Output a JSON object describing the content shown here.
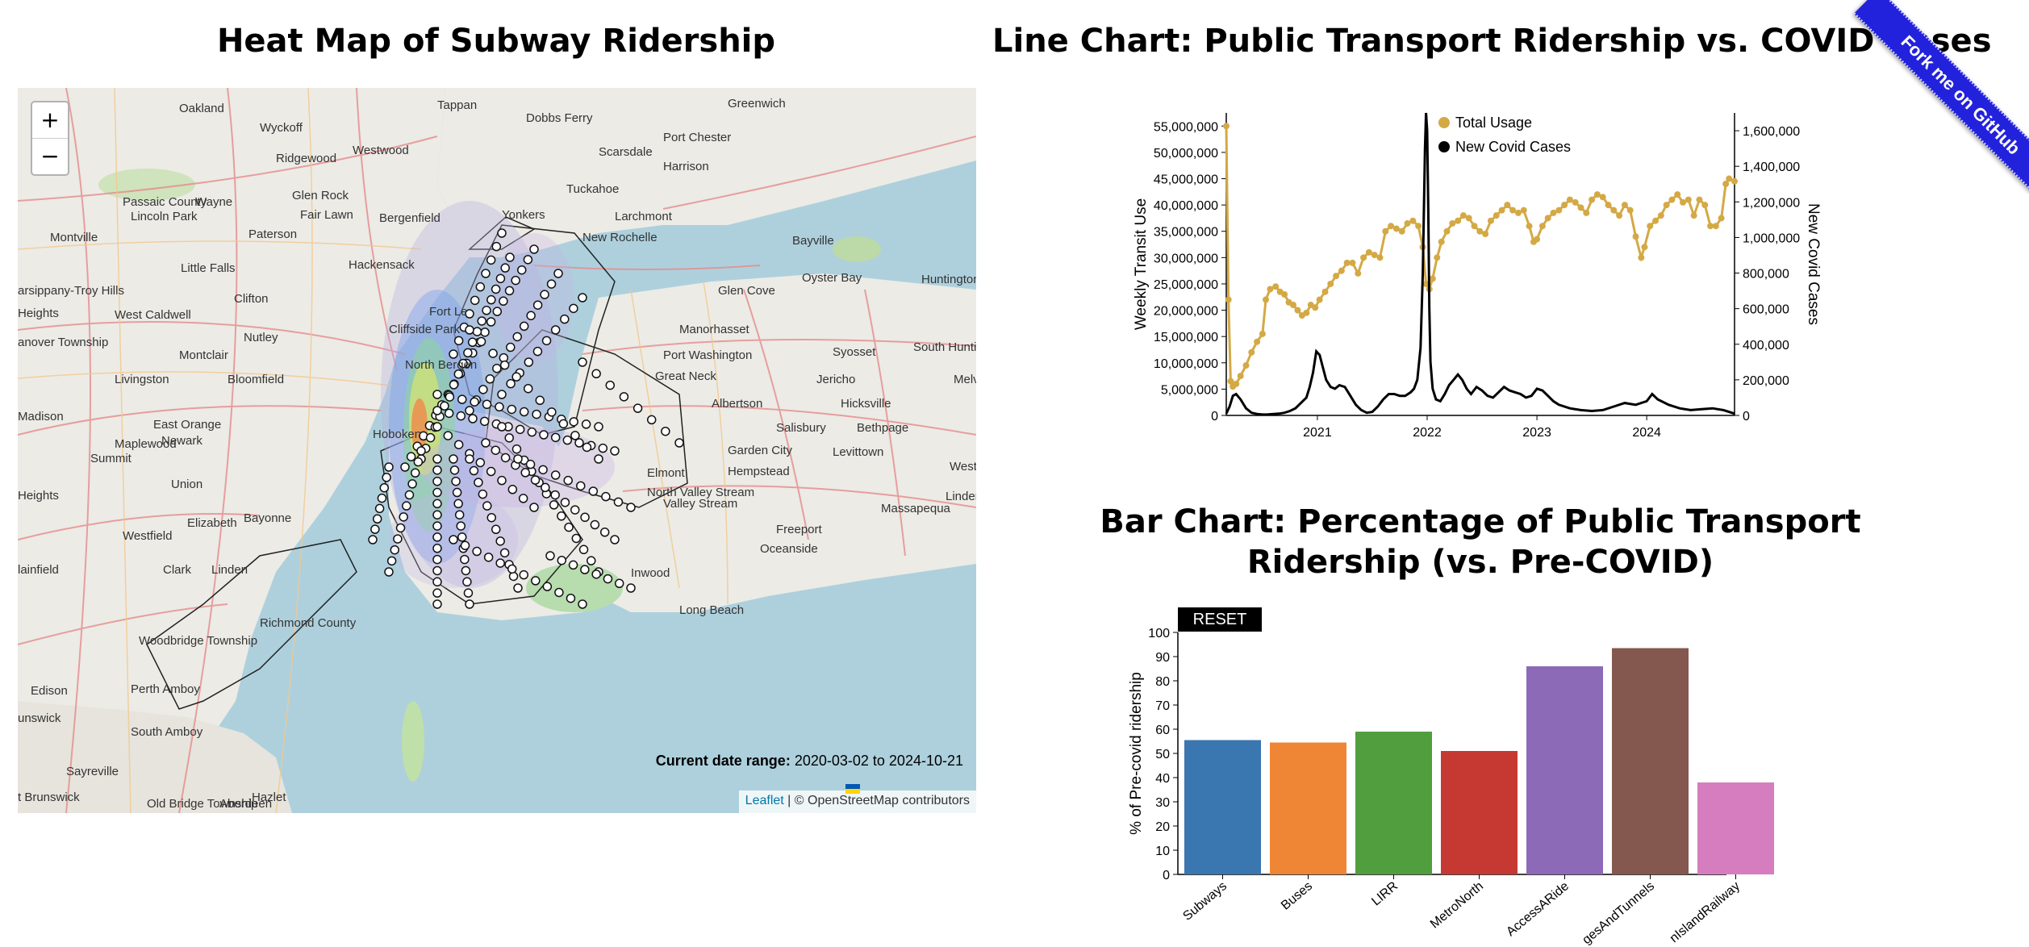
{
  "map_panel": {
    "title": "Heat Map of Subway Ridership",
    "zoom_in": "+",
    "zoom_out": "−",
    "date_range_label": "Current date range:",
    "date_range_value": "2020-03-02 to 2024-10-21",
    "attribution_link": "Leaflet",
    "attribution_text": " | © OpenStreetMap contributors",
    "place_labels": [
      "Tappan",
      "Dobbs Ferry",
      "Greenwich",
      "Oakland",
      "Wyckoff",
      "Ridgewood",
      "Westwood",
      "Scarsdale",
      "Port Chester",
      "Harrison",
      "Wayne",
      "Glen Rock",
      "Tuckahoe",
      "Larchmont",
      "Lincoln Park",
      "Fair Lawn",
      "Bergenfield",
      "Yonkers",
      "New Rochelle",
      "Montville",
      "Paterson",
      "Bayville",
      "Little Falls",
      "Hackensack",
      "Glen Cove",
      "Oyster Bay",
      "arsippany-Troy Hills",
      "West Caldwell",
      "Clifton",
      "Heights",
      "Cliffside Park",
      "Manorhasset",
      "Huntington Station",
      "Montclair",
      "Nutley",
      "Port Washington",
      "Syosset",
      "anover Township",
      "Livingston",
      "Bloomfield",
      "North Bergen",
      "Great Neck",
      "Jericho",
      "South Huntingt",
      "Melville",
      "Fort Le",
      "Albertson",
      "Hicksville",
      "Madison",
      "East Orange",
      "Newark",
      "Hoboken",
      "Salisbury",
      "Bethpage",
      "Maplewood",
      "Summit",
      "Garden City",
      "Levittown",
      "Hempstead",
      "Union",
      "Elmont",
      "West Ea",
      "Massapequa",
      "Heights",
      "North Valley Stream",
      "Bayonne",
      "Elizabeth",
      "Westfield",
      "Valley Stream",
      "Freeport",
      "Lindenh",
      "lainfield",
      "Clark",
      "Linden",
      "Inwood",
      "Oceanside",
      "Long Beach",
      "Richmond County",
      "Woodbridge Township",
      "Edison",
      "Perth Amboy",
      "unswick",
      "South Amboy",
      "Sayreville",
      "Hazlet",
      "t Brunswick",
      "Old Bridge Township",
      "Aberdeen",
      "Passaic County"
    ]
  },
  "line_panel": {
    "title": "Line Chart: Public Transport Ridership vs. COVID Cases"
  },
  "bar_panel": {
    "title": "Bar Chart: Percentage of Public Transport Ridership (vs. Pre-COVID)",
    "reset_label": "RESET"
  },
  "ribbon": {
    "label": "Fork me on GitHub"
  },
  "chart_data": [
    {
      "type": "line",
      "title": "Line Chart: Public Transport Ridership vs. COVID Cases",
      "ylabel": "Weekly Transit Use",
      "y2label": "New Covid Cases",
      "ylim": [
        0,
        57500000
      ],
      "y2lim": [
        0,
        1700000
      ],
      "yticks": [
        "0",
        "5,000,000",
        "10,000,000",
        "15,000,000",
        "20,000,000",
        "25,000,000",
        "30,000,000",
        "35,000,000",
        "40,000,000",
        "45,000,000",
        "50,000,000",
        "55,000,000"
      ],
      "y2ticks": [
        "0",
        "200,000",
        "400,000",
        "600,000",
        "800,000",
        "1,000,000",
        "1,200,000",
        "1,400,000",
        "1,600,000"
      ],
      "xticks": [
        "2021",
        "2022",
        "2023",
        "2024"
      ],
      "xrange": [
        2020.17,
        2024.8
      ],
      "legend_position": "top-right",
      "series": [
        {
          "name": "Total Usage",
          "color": "#d4a945",
          "axis": "left",
          "x": [
            2020.17,
            2020.19,
            2020.21,
            2020.23,
            2020.26,
            2020.3,
            2020.35,
            2020.4,
            2020.45,
            2020.5,
            2020.53,
            2020.57,
            2020.62,
            2020.66,
            2020.7,
            2020.74,
            2020.78,
            2020.82,
            2020.86,
            2020.9,
            2020.94,
            2020.98,
            2021.02,
            2021.07,
            2021.12,
            2021.17,
            2021.22,
            2021.27,
            2021.32,
            2021.37,
            2021.42,
            2021.47,
            2021.52,
            2021.57,
            2021.62,
            2021.67,
            2021.72,
            2021.77,
            2021.82,
            2021.87,
            2021.92,
            2021.96,
            2021.99,
            2022.02,
            2022.05,
            2022.09,
            2022.13,
            2022.18,
            2022.23,
            2022.28,
            2022.33,
            2022.38,
            2022.43,
            2022.48,
            2022.53,
            2022.58,
            2022.63,
            2022.68,
            2022.73,
            2022.78,
            2022.83,
            2022.88,
            2022.93,
            2022.97,
            2023.0,
            2023.05,
            2023.1,
            2023.15,
            2023.2,
            2023.25,
            2023.3,
            2023.35,
            2023.4,
            2023.45,
            2023.5,
            2023.55,
            2023.6,
            2023.65,
            2023.7,
            2023.75,
            2023.8,
            2023.85,
            2023.9,
            2023.95,
            2023.98,
            2024.03,
            2024.08,
            2024.13,
            2024.18,
            2024.23,
            2024.28,
            2024.33,
            2024.38,
            2024.43,
            2024.48,
            2024.53,
            2024.58,
            2024.63,
            2024.68,
            2024.72,
            2024.75,
            2024.8
          ],
          "values": [
            55000000,
            22000000,
            6500000,
            5500000,
            6000000,
            7500000,
            9500000,
            12000000,
            14000000,
            15500000,
            22000000,
            24000000,
            24500000,
            23500000,
            23000000,
            21500000,
            21000000,
            20000000,
            19000000,
            19500000,
            21000000,
            20500000,
            22000000,
            23500000,
            25000000,
            26500000,
            27500000,
            29000000,
            29000000,
            27000000,
            30000000,
            31000000,
            30500000,
            30000000,
            35000000,
            36000000,
            35500000,
            35000000,
            36500000,
            37000000,
            36000000,
            32000000,
            25000000,
            24000000,
            26000000,
            30000000,
            33000000,
            35000000,
            36500000,
            37000000,
            38000000,
            37500000,
            36000000,
            35000000,
            34500000,
            37000000,
            38000000,
            39000000,
            40000000,
            39000000,
            38500000,
            39000000,
            36000000,
            33000000,
            33500000,
            36000000,
            37500000,
            38500000,
            39000000,
            40000000,
            41000000,
            40500000,
            39500000,
            38500000,
            41000000,
            42000000,
            41500000,
            40000000,
            39000000,
            38000000,
            40000000,
            39000000,
            34000000,
            30000000,
            32000000,
            36000000,
            37000000,
            38000000,
            40000000,
            41000000,
            42000000,
            40500000,
            41000000,
            38000000,
            41000000,
            40000000,
            36000000,
            36000000,
            37500000,
            44000000,
            45000000,
            44500000
          ]
        },
        {
          "name": "New Covid Cases",
          "color": "#000000",
          "axis": "right",
          "x": [
            2020.17,
            2020.2,
            2020.23,
            2020.26,
            2020.3,
            2020.35,
            2020.4,
            2020.45,
            2020.5,
            2020.55,
            2020.6,
            2020.65,
            2020.7,
            2020.75,
            2020.8,
            2020.85,
            2020.9,
            2020.93,
            2020.96,
            2020.99,
            2021.02,
            2021.05,
            2021.08,
            2021.12,
            2021.16,
            2021.2,
            2021.25,
            2021.3,
            2021.35,
            2021.4,
            2021.45,
            2021.5,
            2021.55,
            2021.6,
            2021.65,
            2021.7,
            2021.75,
            2021.8,
            2021.85,
            2021.88,
            2021.91,
            2021.94,
            2021.96,
            2021.98,
            2021.99,
            2022.0,
            2022.01,
            2022.02,
            2022.03,
            2022.05,
            2022.08,
            2022.12,
            2022.16,
            2022.2,
            2022.24,
            2022.28,
            2022.32,
            2022.36,
            2022.4,
            2022.45,
            2022.5,
            2022.55,
            2022.6,
            2022.65,
            2022.7,
            2022.75,
            2022.8,
            2022.85,
            2022.9,
            2022.95,
            2023.0,
            2023.05,
            2023.1,
            2023.15,
            2023.2,
            2023.3,
            2023.4,
            2023.5,
            2023.6,
            2023.7,
            2023.8,
            2023.9,
            2024.0,
            2024.05,
            2024.1,
            2024.2,
            2024.3,
            2024.4,
            2024.5,
            2024.6,
            2024.7,
            2024.8
          ],
          "values": [
            10000,
            50000,
            110000,
            120000,
            90000,
            40000,
            15000,
            8000,
            5000,
            6000,
            8000,
            10000,
            15000,
            25000,
            40000,
            70000,
            100000,
            160000,
            240000,
            360000,
            340000,
            270000,
            200000,
            160000,
            150000,
            170000,
            160000,
            110000,
            60000,
            30000,
            15000,
            20000,
            50000,
            90000,
            120000,
            120000,
            110000,
            110000,
            130000,
            150000,
            200000,
            380000,
            800000,
            1500000,
            1700000,
            1600000,
            1150000,
            600000,
            300000,
            150000,
            90000,
            80000,
            120000,
            170000,
            200000,
            230000,
            200000,
            150000,
            120000,
            160000,
            140000,
            110000,
            100000,
            130000,
            160000,
            140000,
            130000,
            120000,
            100000,
            110000,
            150000,
            140000,
            110000,
            80000,
            60000,
            40000,
            30000,
            25000,
            30000,
            50000,
            70000,
            60000,
            80000,
            120000,
            90000,
            60000,
            40000,
            30000,
            35000,
            40000,
            30000,
            10000
          ]
        }
      ]
    },
    {
      "type": "bar",
      "title": "Bar Chart: Percentage of Public Transport Ridership (vs. Pre-COVID)",
      "ylabel": "% of Pre-covid ridership",
      "ylim": [
        0,
        100
      ],
      "yticks": [
        "0",
        "10",
        "20",
        "30",
        "40",
        "50",
        "60",
        "70",
        "80",
        "90",
        "100"
      ],
      "categories": [
        "Subways",
        "Buses",
        "LIRR",
        "MetroNorth",
        "AccessARide",
        "BridgesAndTunnels",
        "StatenIslandRailway"
      ],
      "category_labels_visible": [
        "Subways",
        "Buses",
        "LIRR",
        "MetroNorth",
        "AccessARide",
        "gesAndTunnels",
        "nIslandRailway"
      ],
      "values": [
        55.5,
        54.5,
        59,
        51,
        86,
        93.5,
        38
      ],
      "colors": [
        "#3a76af",
        "#ef8636",
        "#519e3e",
        "#c53932",
        "#8d6ab8",
        "#84584e",
        "#d57dbf"
      ]
    }
  ]
}
